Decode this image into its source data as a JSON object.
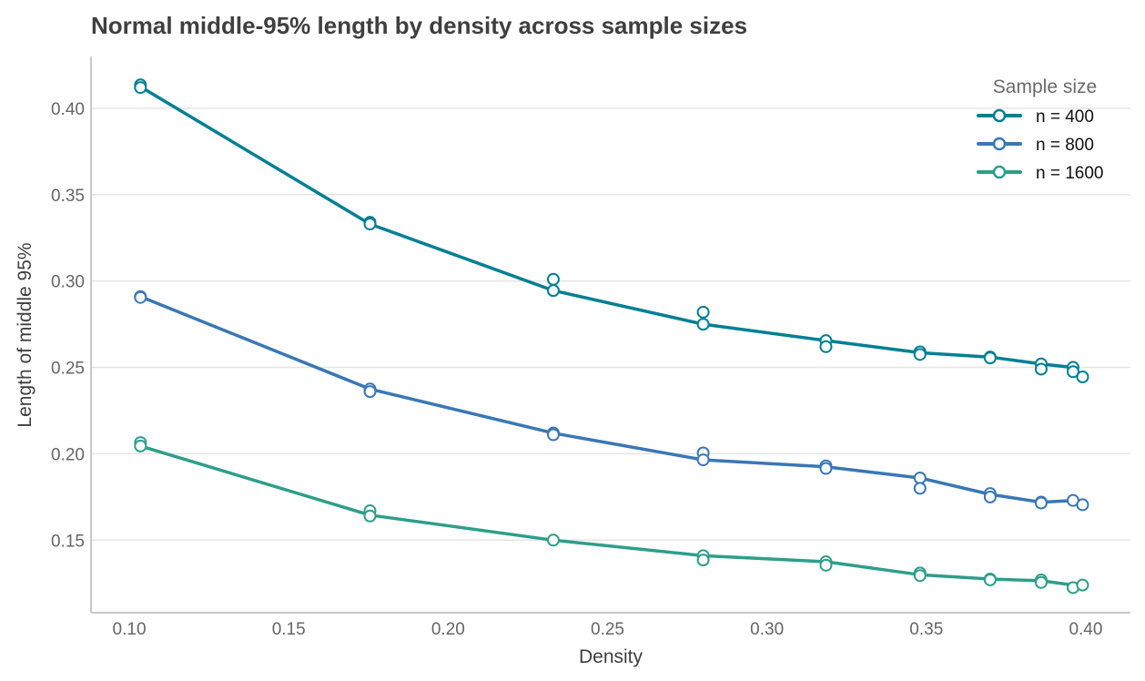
{
  "chart_data": {
    "type": "line",
    "title": "Normal middle-95% length by density across sample sizes",
    "xlabel": "Density",
    "ylabel": "Length of middle 95%",
    "xlim": [
      0.088,
      0.414
    ],
    "ylim": [
      0.108,
      0.43
    ],
    "x_ticks": [
      0.1,
      0.15,
      0.2,
      0.25,
      0.3,
      0.35,
      0.4
    ],
    "x_tick_labels": [
      "0.10",
      "0.15",
      "0.20",
      "0.25",
      "0.30",
      "0.35",
      "0.40"
    ],
    "y_ticks": [
      0.15,
      0.2,
      0.25,
      0.3,
      0.35,
      0.4
    ],
    "y_tick_labels": [
      "0.15",
      "0.20",
      "0.25",
      "0.30",
      "0.35",
      "0.40"
    ],
    "grid": "horizontal",
    "legend": {
      "title": "Sample size",
      "placement": "top-right"
    },
    "series": [
      {
        "name": "n = 400",
        "color": "#007f94",
        "line_x": [
          0.1035,
          0.1755,
          0.233,
          0.28,
          0.3185,
          0.348,
          0.37,
          0.386,
          0.396,
          0.399
        ],
        "line_y": [
          0.4125,
          0.333,
          0.2945,
          0.275,
          0.2655,
          0.2585,
          0.256,
          0.252,
          0.25,
          0.2445
        ],
        "points_x": [
          0.1035,
          0.1035,
          0.1755,
          0.1755,
          0.233,
          0.233,
          0.28,
          0.28,
          0.3185,
          0.3185,
          0.348,
          0.348,
          0.37,
          0.37,
          0.386,
          0.386,
          0.396,
          0.396,
          0.399
        ],
        "points_y": [
          0.4135,
          0.412,
          0.334,
          0.333,
          0.301,
          0.2945,
          0.282,
          0.275,
          0.2655,
          0.262,
          0.259,
          0.2575,
          0.256,
          0.2555,
          0.252,
          0.249,
          0.25,
          0.2475,
          0.2445
        ]
      },
      {
        "name": "n = 800",
        "color": "#3a77b6",
        "line_x": [
          0.1035,
          0.1755,
          0.233,
          0.28,
          0.3185,
          0.348,
          0.37,
          0.386,
          0.396,
          0.399
        ],
        "line_y": [
          0.291,
          0.2375,
          0.212,
          0.1965,
          0.1925,
          0.186,
          0.1765,
          0.172,
          0.173,
          0.1705
        ],
        "points_x": [
          0.1035,
          0.1035,
          0.1755,
          0.1755,
          0.233,
          0.233,
          0.28,
          0.28,
          0.3185,
          0.3185,
          0.348,
          0.348,
          0.37,
          0.37,
          0.386,
          0.386,
          0.396,
          0.399
        ],
        "points_y": [
          0.291,
          0.2905,
          0.2375,
          0.236,
          0.212,
          0.211,
          0.2005,
          0.1965,
          0.193,
          0.1915,
          0.186,
          0.18,
          0.177,
          0.175,
          0.172,
          0.1715,
          0.173,
          0.1705
        ]
      },
      {
        "name": "n = 1600",
        "color": "#2e9e8a",
        "line_x": [
          0.1035,
          0.1755,
          0.233,
          0.28,
          0.3185,
          0.348,
          0.37,
          0.386,
          0.396,
          0.399
        ],
        "line_y": [
          0.2045,
          0.1645,
          0.15,
          0.141,
          0.1375,
          0.13,
          0.1275,
          0.1265,
          0.124,
          0.1245
        ],
        "points_x": [
          0.1035,
          0.1035,
          0.1755,
          0.1755,
          0.233,
          0.28,
          0.28,
          0.3185,
          0.3185,
          0.348,
          0.348,
          0.37,
          0.37,
          0.386,
          0.386,
          0.396,
          0.399
        ],
        "points_y": [
          0.2065,
          0.2045,
          0.167,
          0.164,
          0.15,
          0.141,
          0.1385,
          0.1375,
          0.1355,
          0.131,
          0.1295,
          0.1275,
          0.127,
          0.127,
          0.1255,
          0.1225,
          0.124
        ]
      }
    ]
  }
}
